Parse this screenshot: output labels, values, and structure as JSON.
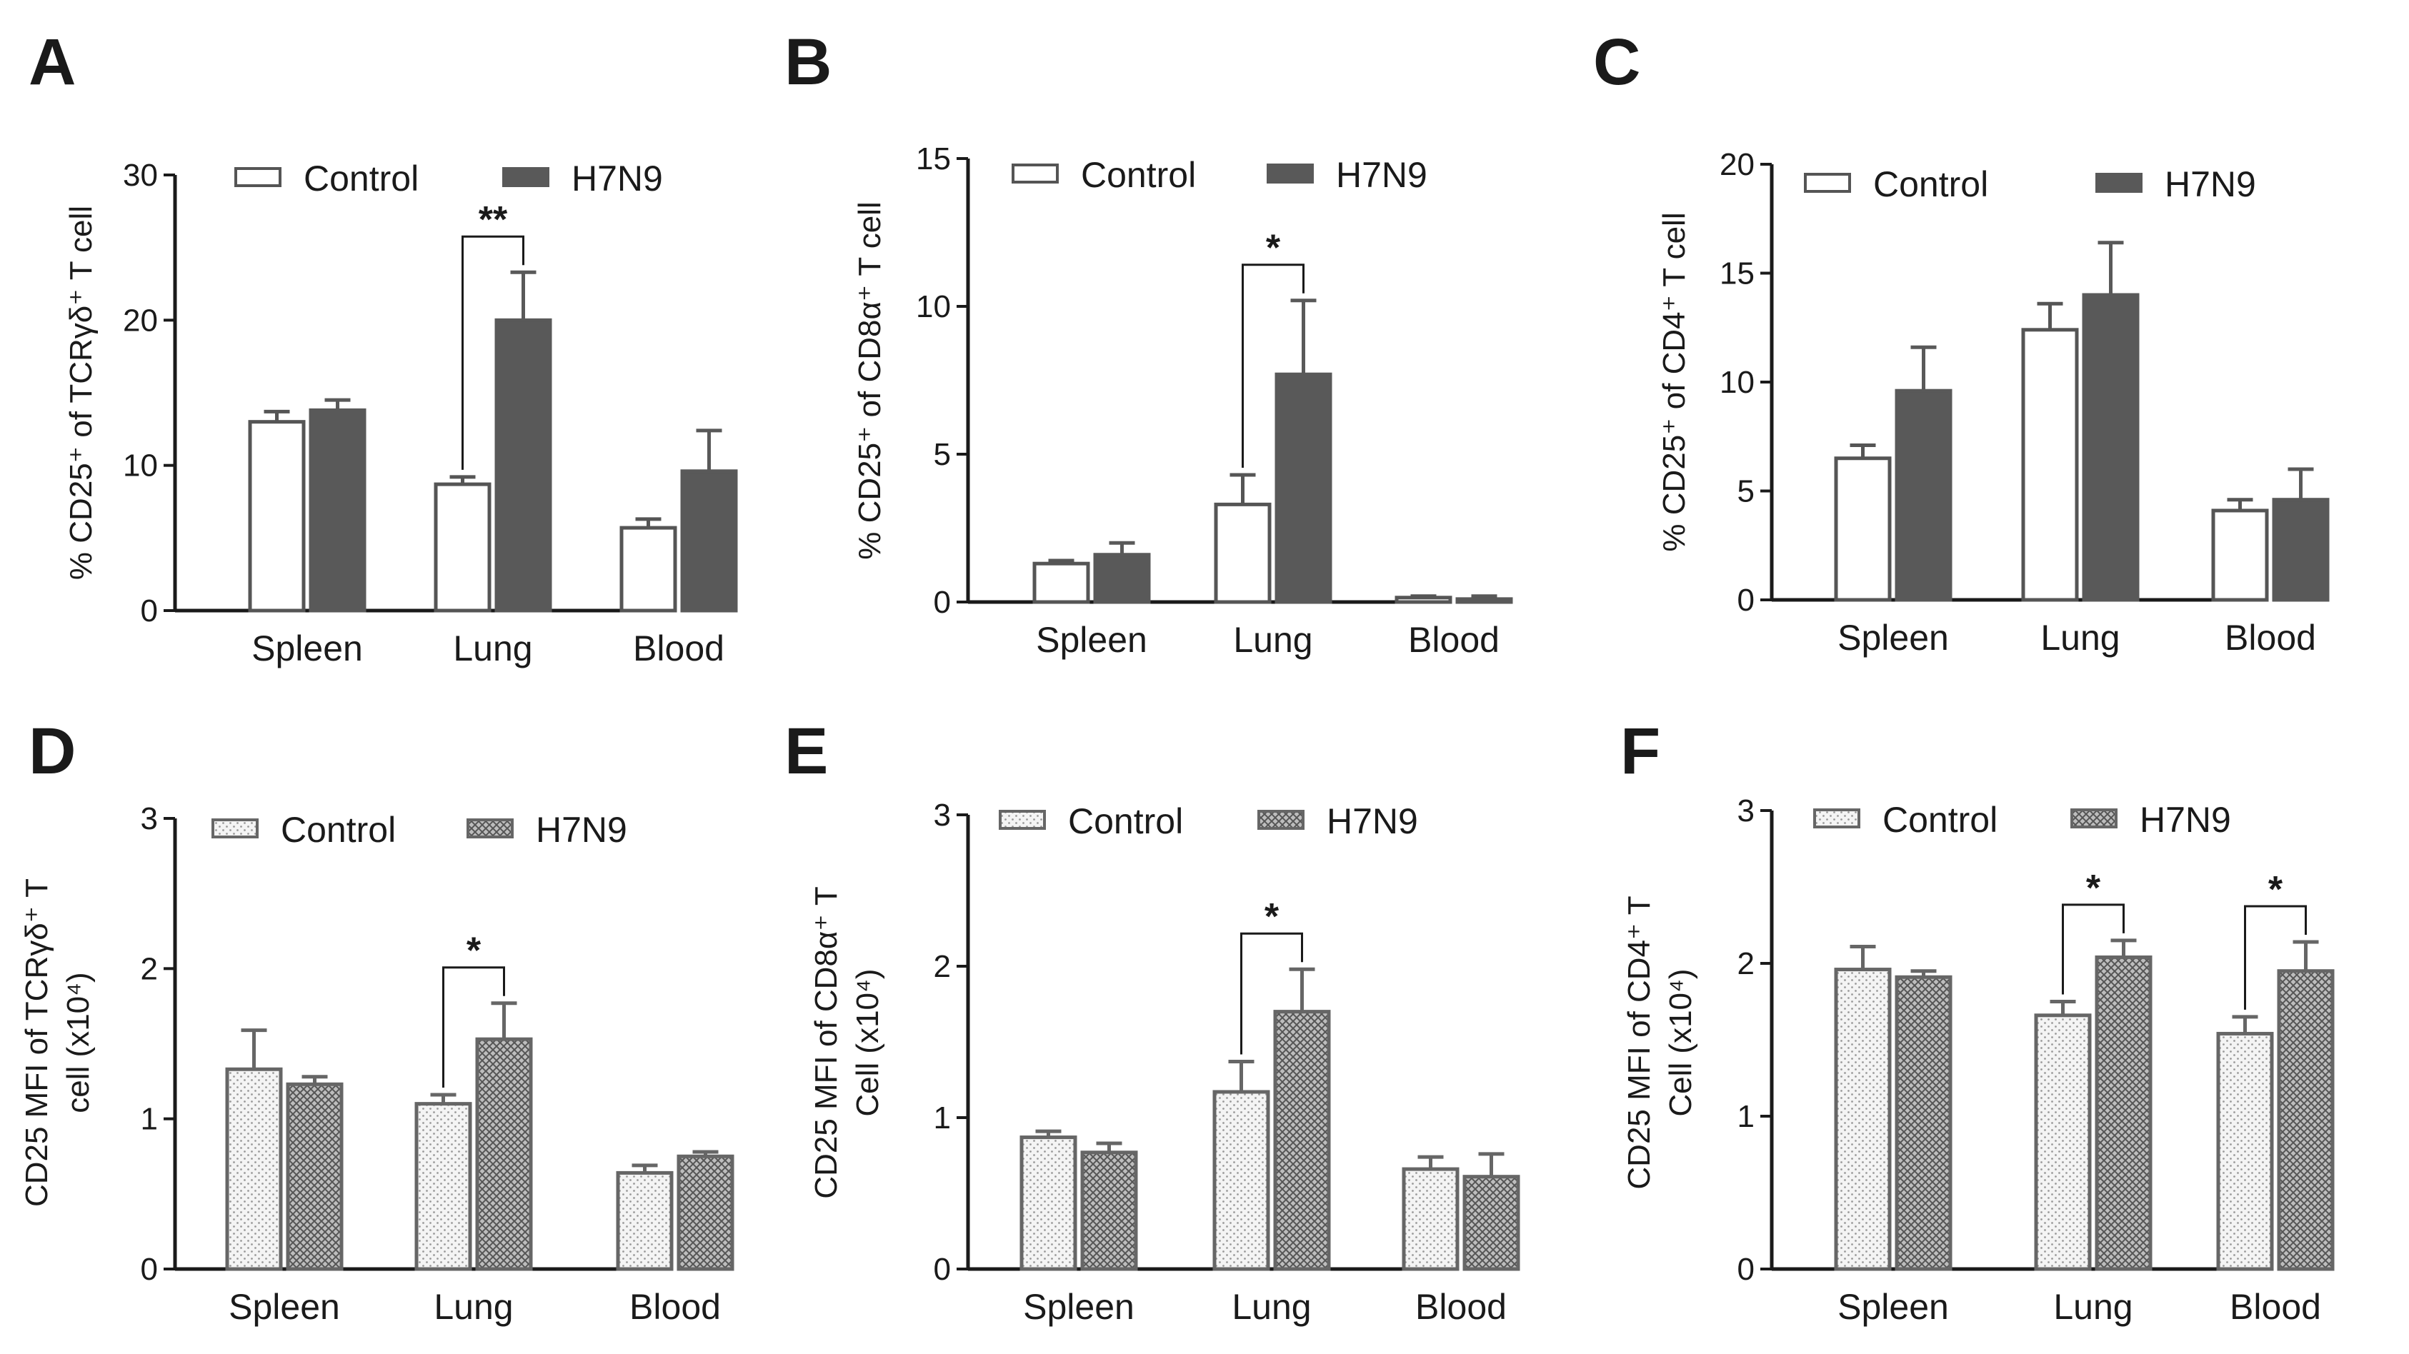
{
  "chart_data": [
    {
      "letter": "A",
      "type": "bar",
      "categories": [
        "Spleen",
        "Lung",
        "Blood"
      ],
      "series": [
        {
          "name": "Control",
          "values": [
            13,
            8.7,
            5.7
          ],
          "errors": [
            0.7,
            0.5,
            0.6
          ]
        },
        {
          "name": "H7N9",
          "values": [
            13.8,
            20,
            9.6
          ],
          "errors": [
            0.7,
            3.3,
            2.8
          ]
        }
      ],
      "ylim": [
        0,
        30
      ],
      "yticks": [
        "0",
        "10",
        "20",
        "30"
      ],
      "ylabel": [
        "% CD25⁺ of TCRγδ⁺ T cell"
      ],
      "significance": [
        {
          "category": "Lung",
          "label": "**"
        }
      ],
      "style": "solid"
    },
    {
      "letter": "B",
      "type": "bar",
      "categories": [
        "Spleen",
        "Lung",
        "Blood"
      ],
      "series": [
        {
          "name": "Control",
          "values": [
            1.3,
            3.3,
            0.15
          ],
          "errors": [
            0.1,
            1.0,
            0.05
          ]
        },
        {
          "name": "H7N9",
          "values": [
            1.6,
            7.7,
            0.1
          ],
          "errors": [
            0.4,
            2.5,
            0.1
          ]
        }
      ],
      "ylim": [
        0,
        15
      ],
      "yticks": [
        "0",
        "5",
        "10",
        "15"
      ],
      "ylabel": [
        "% CD25⁺ of CD8α⁺ T cell"
      ],
      "significance": [
        {
          "category": "Lung",
          "label": "*"
        }
      ],
      "style": "solid"
    },
    {
      "letter": "C",
      "type": "bar",
      "categories": [
        "Spleen",
        "Lung",
        "Blood"
      ],
      "series": [
        {
          "name": "Control",
          "values": [
            6.5,
            12.4,
            4.1
          ],
          "errors": [
            0.6,
            1.2,
            0.5
          ]
        },
        {
          "name": "H7N9",
          "values": [
            9.6,
            14,
            4.6
          ],
          "errors": [
            2.0,
            2.4,
            1.4
          ]
        }
      ],
      "ylim": [
        0,
        20
      ],
      "yticks": [
        "0",
        "5",
        "10",
        "15",
        "20"
      ],
      "ylabel": [
        "% CD25⁺ of CD4⁺ T cell"
      ],
      "significance": [],
      "style": "solid"
    },
    {
      "letter": "D",
      "type": "bar",
      "categories": [
        "Spleen",
        "Lung",
        "Blood"
      ],
      "series": [
        {
          "name": "Control",
          "values": [
            1.33,
            1.1,
            0.64
          ],
          "errors": [
            0.26,
            0.06,
            0.05
          ]
        },
        {
          "name": "H7N9",
          "values": [
            1.23,
            1.53,
            0.75
          ],
          "errors": [
            0.05,
            0.24,
            0.03
          ]
        }
      ],
      "ylim": [
        0,
        3
      ],
      "yticks": [
        "0",
        "1",
        "2",
        "3"
      ],
      "ylabel": [
        "CD25 MFI of TCRγδ⁺ T",
        "cell (x10⁴)"
      ],
      "significance": [
        {
          "category": "Lung",
          "label": "*"
        }
      ],
      "style": "pattern"
    },
    {
      "letter": "E",
      "type": "bar",
      "categories": [
        "Spleen",
        "Lung",
        "Blood"
      ],
      "series": [
        {
          "name": "Control",
          "values": [
            0.87,
            1.17,
            0.66
          ],
          "errors": [
            0.04,
            0.2,
            0.08
          ]
        },
        {
          "name": "H7N9",
          "values": [
            0.77,
            1.7,
            0.61
          ],
          "errors": [
            0.06,
            0.28,
            0.15
          ]
        }
      ],
      "ylim": [
        0,
        3
      ],
      "yticks": [
        "0",
        "1",
        "2",
        "3"
      ],
      "ylabel": [
        "CD25 MFI of CD8α⁺ T",
        "Cell (x10⁴)"
      ],
      "significance": [
        {
          "category": "Lung",
          "label": "*"
        }
      ],
      "style": "pattern"
    },
    {
      "letter": "F",
      "type": "bar",
      "categories": [
        "Spleen",
        "Lung",
        "Blood"
      ],
      "series": [
        {
          "name": "Control",
          "values": [
            1.96,
            1.66,
            1.54
          ],
          "errors": [
            0.15,
            0.09,
            0.11
          ]
        },
        {
          "name": "H7N9",
          "values": [
            1.91,
            2.04,
            1.95
          ],
          "errors": [
            0.04,
            0.11,
            0.19
          ]
        }
      ],
      "ylim": [
        0,
        3
      ],
      "yticks": [
        "0",
        "1",
        "2",
        "3"
      ],
      "ylabel": [
        "CD25 MFI of CD4⁺ T",
        "Cell (x10⁴)"
      ],
      "significance": [
        {
          "category": "Lung",
          "label": "*"
        },
        {
          "category": "Blood",
          "label": "*"
        }
      ],
      "style": "pattern"
    }
  ]
}
